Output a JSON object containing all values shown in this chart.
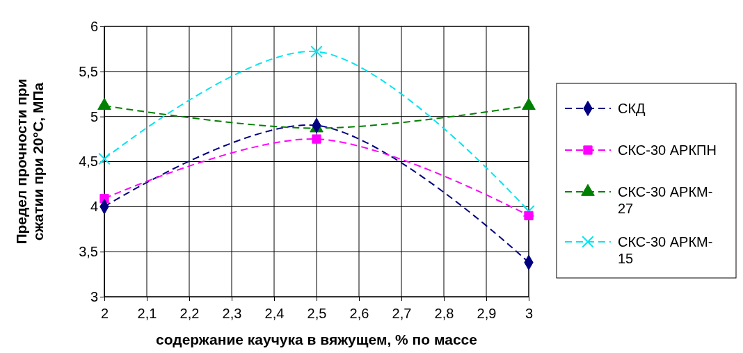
{
  "chart_data": {
    "type": "line",
    "xlabel": "содержание каучука в вяжущем, % по массе",
    "ylabel": "Предел прочности при сжатии при 20°С, МПа",
    "x": [
      2,
      2.5,
      3
    ],
    "xlim": [
      2,
      3
    ],
    "xticks": [
      2,
      {
        "value": 2.1,
        "label": "2,1"
      },
      {
        "value": 2.2,
        "label": "2,2"
      },
      {
        "value": 2.3,
        "label": "2,3"
      },
      {
        "value": 2.4,
        "label": "2,4"
      },
      {
        "value": 2.5,
        "label": "2,5"
      },
      {
        "value": 2.6,
        "label": "2,6"
      },
      {
        "value": 2.7,
        "label": "2,7"
      },
      {
        "value": 2.8,
        "label": "2,8"
      },
      {
        "value": 2.9,
        "label": "2,9"
      },
      3
    ],
    "ylim": [
      3,
      6
    ],
    "yticks": [
      3,
      {
        "value": 3.5,
        "label": "3,5"
      },
      4,
      {
        "value": 4.5,
        "label": "4,5"
      },
      5,
      {
        "value": 5.5,
        "label": "5,5"
      },
      6
    ],
    "grid": true,
    "legend": "right",
    "line_style": "dashed",
    "series": [
      {
        "name": "СКД",
        "color": "#000080",
        "marker": "diamond",
        "values": [
          4.0,
          4.9,
          3.38
        ]
      },
      {
        "name": "СКС-30 АРКПН",
        "color": "#ff00ff",
        "marker": "square",
        "values": [
          4.09,
          4.75,
          3.9
        ]
      },
      {
        "name": "СКС-30 АРКМ-27",
        "color": "#008000",
        "marker": "triangle",
        "values": [
          5.12,
          4.87,
          5.12
        ]
      },
      {
        "name": "СКС-30 АРКМ-15",
        "color": "#00e5f0",
        "marker": "cross",
        "values": [
          4.53,
          5.72,
          3.95
        ]
      }
    ]
  }
}
